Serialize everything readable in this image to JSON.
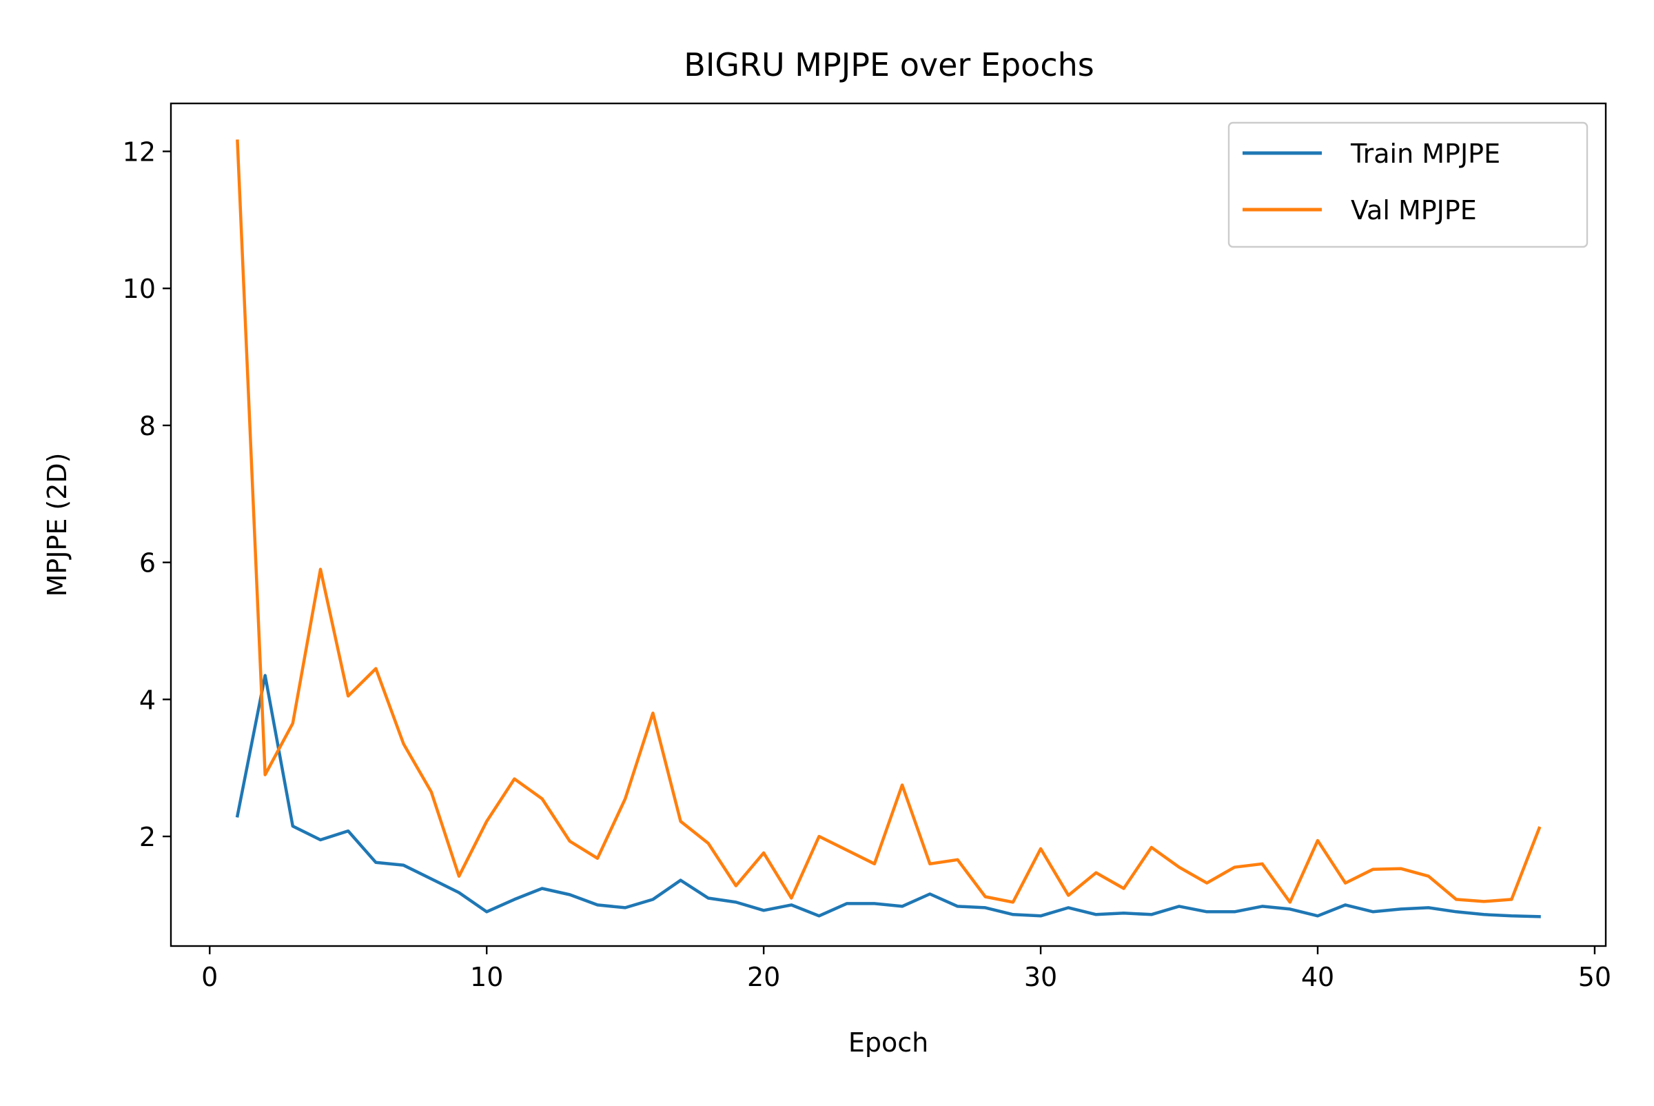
{
  "chart_data": {
    "type": "line",
    "title": "BIGRU MPJPE over Epochs",
    "xlabel": "Epoch",
    "ylabel": "MPJPE (2D)",
    "xlim": [
      -1.4,
      50.4
    ],
    "ylim": [
      0.4,
      12.7
    ],
    "xticks": [
      0,
      10,
      20,
      30,
      40,
      50
    ],
    "yticks": [
      2,
      4,
      6,
      8,
      10,
      12
    ],
    "grid": false,
    "legend_position": "top-right",
    "x": [
      1,
      2,
      3,
      4,
      5,
      6,
      7,
      8,
      9,
      10,
      11,
      12,
      13,
      14,
      15,
      16,
      17,
      18,
      19,
      20,
      21,
      22,
      23,
      24,
      25,
      26,
      27,
      28,
      29,
      30,
      31,
      32,
      33,
      34,
      35,
      36,
      37,
      38,
      39,
      40,
      41,
      42,
      43,
      44,
      45,
      46,
      47,
      48
    ],
    "series": [
      {
        "name": "Train MPJPE",
        "color": "#1f77b4",
        "values": [
          2.3,
          4.35,
          2.15,
          1.95,
          2.08,
          1.62,
          1.58,
          1.38,
          1.18,
          0.9,
          1.08,
          1.24,
          1.15,
          1.0,
          0.96,
          1.08,
          1.36,
          1.1,
          1.04,
          0.92,
          1.0,
          0.84,
          1.02,
          1.02,
          0.98,
          1.16,
          0.98,
          0.96,
          0.86,
          0.84,
          0.96,
          0.86,
          0.88,
          0.86,
          0.98,
          0.9,
          0.9,
          0.98,
          0.94,
          0.84,
          1.0,
          0.9,
          0.94,
          0.96,
          0.9,
          0.86,
          0.84,
          0.83
        ]
      },
      {
        "name": "Val MPJPE",
        "color": "#ff7f0e",
        "values": [
          12.15,
          2.9,
          3.65,
          5.9,
          4.05,
          4.45,
          3.35,
          2.65,
          1.42,
          2.22,
          2.84,
          2.55,
          1.93,
          1.68,
          2.55,
          3.8,
          2.22,
          1.9,
          1.28,
          1.76,
          1.1,
          2.0,
          1.8,
          1.6,
          2.75,
          1.6,
          1.66,
          1.12,
          1.04,
          1.82,
          1.14,
          1.47,
          1.24,
          1.84,
          1.55,
          1.32,
          1.55,
          1.6,
          1.04,
          1.94,
          1.32,
          1.52,
          1.53,
          1.42,
          1.08,
          1.05,
          1.08,
          2.12
        ]
      }
    ]
  }
}
